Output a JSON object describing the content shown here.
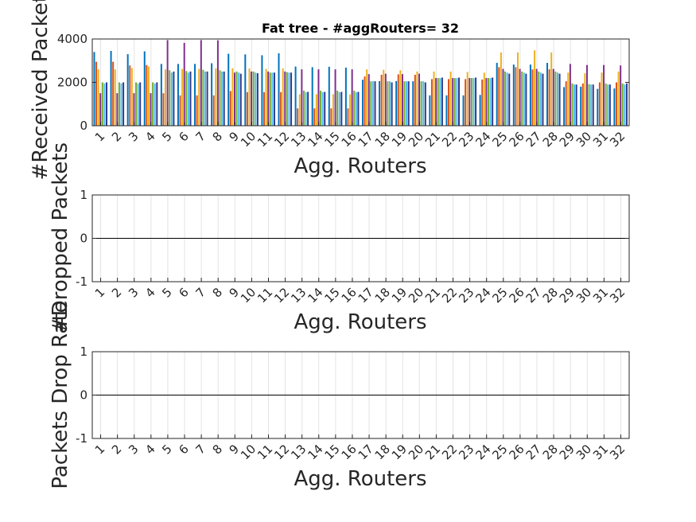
{
  "chart_data": [
    {
      "type": "bar",
      "title": "Fat tree -  #aggRouters= 32",
      "xlabel": "Agg. Routers",
      "ylabel": "#Received Packets",
      "ylim": [
        0,
        4000
      ],
      "yticks": [
        "0",
        "2000",
        "4000"
      ],
      "categories": [
        "1",
        "2",
        "3",
        "4",
        "5",
        "6",
        "7",
        "8",
        "9",
        "10",
        "11",
        "12",
        "13",
        "14",
        "15",
        "16",
        "17",
        "18",
        "19",
        "20",
        "21",
        "22",
        "23",
        "24",
        "25",
        "26",
        "27",
        "28",
        "29",
        "30",
        "31",
        "32"
      ],
      "grid": true,
      "series": [
        {
          "color": "#0072BD",
          "values": [
            3400,
            3450,
            3300,
            3430,
            2850,
            2850,
            2850,
            2880,
            3320,
            3290,
            3250,
            3340,
            2730,
            2700,
            2720,
            2680,
            2120,
            2060,
            2060,
            2050,
            1400,
            1400,
            1400,
            1420,
            2900,
            2820,
            2820,
            2900,
            1780,
            1800,
            1700,
            1720
          ]
        },
        {
          "color": "#D95319",
          "values": [
            2950,
            2950,
            2780,
            2800,
            1500,
            1400,
            1400,
            1400,
            1600,
            1550,
            1550,
            1550,
            800,
            800,
            800,
            800,
            2270,
            2350,
            2370,
            2350,
            2150,
            2150,
            2150,
            2130,
            2700,
            2700,
            2600,
            2600,
            2050,
            1950,
            2000,
            2000
          ]
        },
        {
          "color": "#EDB120",
          "values": [
            2600,
            2600,
            2660,
            2730,
            2600,
            2620,
            2620,
            2640,
            2650,
            2640,
            2620,
            2640,
            1450,
            1450,
            1450,
            1440,
            2600,
            2580,
            2560,
            2500,
            2500,
            2500,
            2480,
            2450,
            3380,
            3380,
            3480,
            3380,
            2450,
            2420,
            2450,
            2500
          ]
        },
        {
          "color": "#7E2F8E",
          "values": [
            1500,
            1500,
            1500,
            1500,
            3950,
            3820,
            3950,
            3940,
            2450,
            2500,
            2500,
            2500,
            2600,
            2600,
            2600,
            2600,
            2380,
            2400,
            2380,
            2400,
            2200,
            2200,
            2200,
            2200,
            2620,
            2620,
            2620,
            2620,
            2850,
            2800,
            2800,
            2780
          ]
        },
        {
          "color": "#77AC30",
          "values": [
            2000,
            2000,
            2000,
            2000,
            2560,
            2520,
            2580,
            2560,
            2500,
            2500,
            2450,
            2470,
            1620,
            1620,
            1620,
            1620,
            2050,
            2050,
            2050,
            2050,
            2200,
            2200,
            2200,
            2200,
            2500,
            2500,
            2500,
            2500,
            1950,
            1920,
            1950,
            1950
          ]
        },
        {
          "color": "#4DBEEE",
          "values": [
            1950,
            1950,
            1950,
            1950,
            2450,
            2450,
            2500,
            2500,
            2450,
            2450,
            2450,
            2450,
            1550,
            1550,
            1550,
            1550,
            2050,
            2050,
            2050,
            2050,
            2200,
            2200,
            2200,
            2200,
            2450,
            2450,
            2450,
            2450,
            1900,
            1900,
            1900,
            1900
          ]
        },
        {
          "color": "#2e3a8c",
          "values": [
            2000,
            2000,
            2000,
            2000,
            2500,
            2500,
            2500,
            2500,
            2400,
            2420,
            2450,
            2450,
            1560,
            1560,
            1560,
            1560,
            2050,
            2000,
            2050,
            2000,
            2220,
            2220,
            2220,
            2220,
            2400,
            2400,
            2400,
            2400,
            1900,
            1900,
            1900,
            1950
          ]
        }
      ]
    },
    {
      "type": "bar",
      "title": "",
      "xlabel": "Agg. Routers",
      "ylabel": "#Dropped Packets",
      "ylim": [
        -1,
        1
      ],
      "yticks": [
        "-1",
        "0",
        "1"
      ],
      "categories": [
        "1",
        "2",
        "3",
        "4",
        "5",
        "6",
        "7",
        "8",
        "9",
        "10",
        "11",
        "12",
        "13",
        "14",
        "15",
        "16",
        "17",
        "18",
        "19",
        "20",
        "21",
        "22",
        "23",
        "24",
        "25",
        "26",
        "27",
        "28",
        "29",
        "30",
        "31",
        "32"
      ],
      "grid": true,
      "series": []
    },
    {
      "type": "bar",
      "title": "",
      "xlabel": "Agg. Routers",
      "ylabel": "Packets Drop Rate",
      "ylim": [
        -1,
        1
      ],
      "yticks": [
        "-1",
        "0",
        "1"
      ],
      "categories": [
        "1",
        "2",
        "3",
        "4",
        "5",
        "6",
        "7",
        "8",
        "9",
        "10",
        "11",
        "12",
        "13",
        "14",
        "15",
        "16",
        "17",
        "18",
        "19",
        "20",
        "21",
        "22",
        "23",
        "24",
        "25",
        "26",
        "27",
        "28",
        "29",
        "30",
        "31",
        "32"
      ],
      "grid": true,
      "series": []
    }
  ]
}
